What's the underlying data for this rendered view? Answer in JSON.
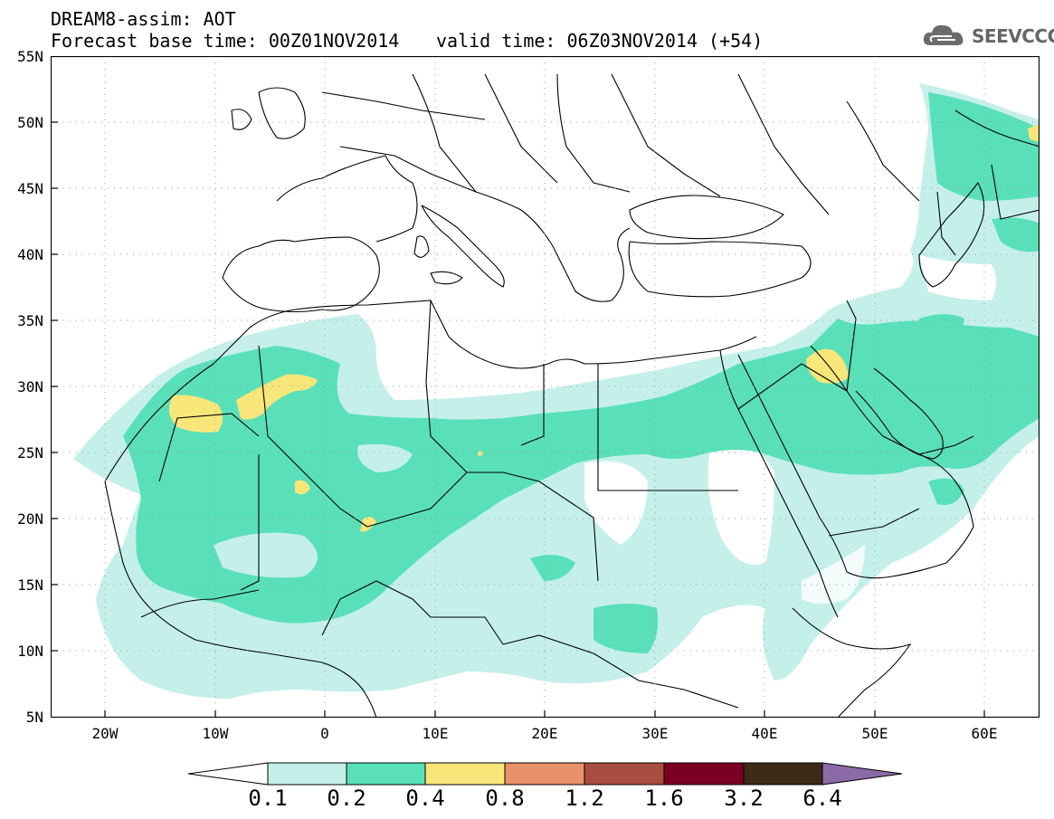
{
  "title": {
    "line1": "DREAM8-assim: AOT",
    "line2": "Forecast base time: 00Z01NOV2014",
    "valid": "valid time: 06Z03NOV2014 (+54)"
  },
  "logo": {
    "text": "SEEVCCC",
    "icon": "cloud-icon"
  },
  "map": {
    "lon_range": [
      -25,
      65
    ],
    "lat_range": [
      5,
      55
    ],
    "y_ticks": [
      "55N",
      "50N",
      "45N",
      "40N",
      "35N",
      "30N",
      "25N",
      "20N",
      "15N",
      "10N",
      "5N"
    ],
    "x_ticks": [
      "20W",
      "10W",
      "0",
      "10E",
      "20E",
      "30E",
      "40E",
      "50E",
      "60E"
    ],
    "grid": "dotted"
  },
  "colorbar": {
    "labels": [
      "0.1",
      "0.2",
      "0.4",
      "0.8",
      "1.2",
      "1.6",
      "3.2",
      "6.4"
    ],
    "colors": [
      "#ffffff",
      "#c5f0ea",
      "#5ae0b8",
      "#f8e67a",
      "#e8916b",
      "#a84d3f",
      "#7a0025",
      "#3d2a18",
      "#8c6aa8"
    ]
  },
  "palette": {
    "c1": "#c5f0ea",
    "c2": "#5ae0b8",
    "c3": "#f8e67a"
  }
}
